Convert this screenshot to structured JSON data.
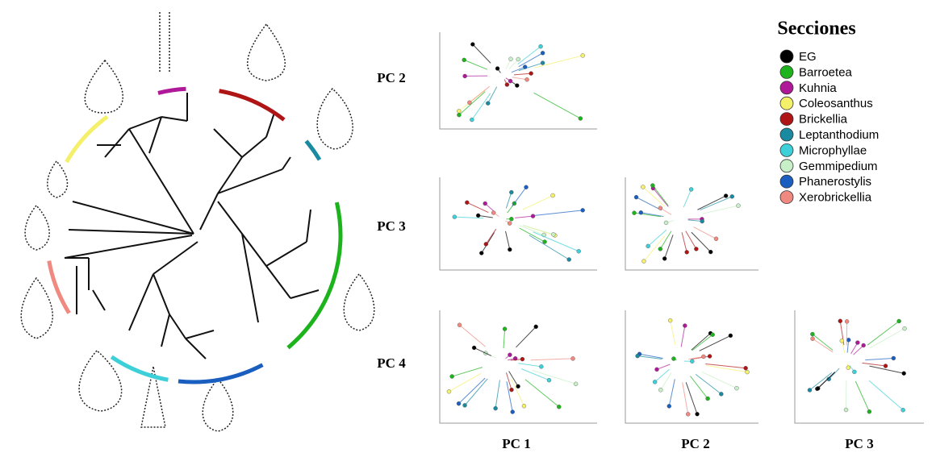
{
  "legend": {
    "title": "Secciones",
    "items": [
      {
        "label": "EG",
        "color": "#000000"
      },
      {
        "label": "Barroetea",
        "color": "#1db31d"
      },
      {
        "label": "Kuhnia",
        "color": "#b0189a"
      },
      {
        "label": "Coleosanthus",
        "color": "#f5f06a"
      },
      {
        "label": "Brickellia",
        "color": "#b01515"
      },
      {
        "label": "Leptanthodium",
        "color": "#1a8aa0"
      },
      {
        "label": "Microphyllae",
        "color": "#3dd0d8"
      },
      {
        "label": "Gemmipedium",
        "color": "#c8f0c8"
      },
      {
        "label": "Phanerostylis",
        "color": "#1a5fc0"
      },
      {
        "label": "Xerobrickellia",
        "color": "#f08a80"
      }
    ]
  },
  "row_labels": [
    "PC 2",
    "PC 3",
    "PC 4"
  ],
  "column_labels": [
    "PC 1",
    "PC 2",
    "PC 3"
  ]
}
